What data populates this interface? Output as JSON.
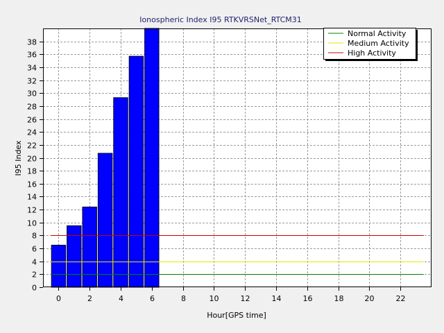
{
  "chart_data": {
    "type": "bar",
    "title": "Ionospheric Index I95 RTKVRSNet_RTCM31",
    "xlabel": "Hour[GPS time]",
    "ylabel": "I95 Index",
    "xlim": [
      -1,
      24
    ],
    "ylim": [
      0,
      40
    ],
    "x_ticks": [
      "0",
      "2",
      "4",
      "6",
      "8",
      "10",
      "12",
      "14",
      "16",
      "18",
      "20",
      "22"
    ],
    "y_ticks": [
      "0",
      "2",
      "4",
      "6",
      "8",
      "10",
      "12",
      "14",
      "16",
      "18",
      "20",
      "22",
      "24",
      "26",
      "28",
      "30",
      "32",
      "34",
      "36",
      "38"
    ],
    "grid": true,
    "legend_position": "top-right",
    "bars": {
      "hours": [
        0,
        1,
        2,
        3,
        4,
        5,
        6
      ],
      "values": [
        6.5,
        9.5,
        12.4,
        20.7,
        29.3,
        35.7,
        40
      ],
      "color": "#0000ff"
    },
    "thresholds": [
      {
        "name": "Normal Activity",
        "value": 2,
        "x_range": [
          -0.5,
          23.5
        ],
        "color": "#008000"
      },
      {
        "name": "Medium Activity",
        "value": 4,
        "x_range": [
          -0.5,
          23.5
        ],
        "color": "#e6e600"
      },
      {
        "name": "High Activity",
        "value": 8,
        "x_range": [
          -0.5,
          23.5
        ],
        "color": "#cc0000"
      }
    ]
  }
}
